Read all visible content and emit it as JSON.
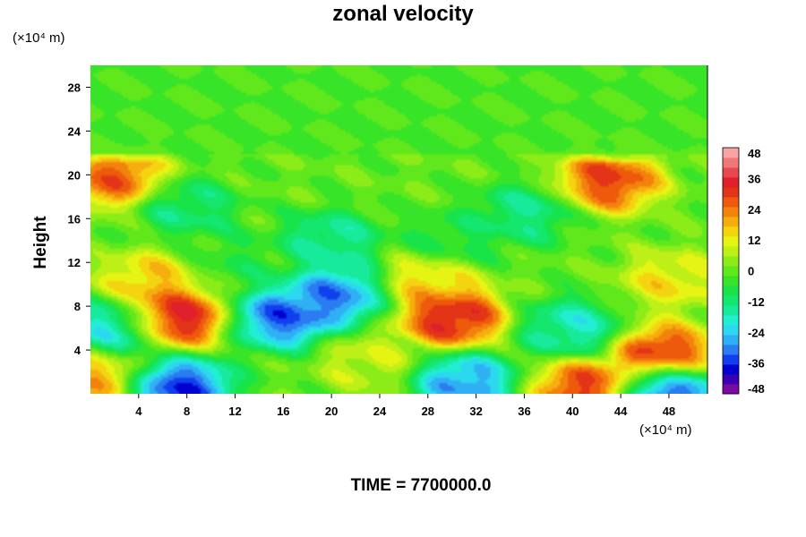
{
  "chart_data": {
    "type": "heatmap",
    "title": "zonal velocity",
    "ylabel": "Height",
    "y_unit_label": "(×10⁴ m)",
    "x_unit_label": "(×10⁴ m)",
    "xlim": [
      0,
      51.2
    ],
    "ylim": [
      0,
      30
    ],
    "x_ticks": [
      4,
      8,
      12,
      16,
      20,
      24,
      28,
      32,
      36,
      40,
      44,
      48
    ],
    "y_ticks": [
      4,
      8,
      12,
      16,
      20,
      24,
      28
    ],
    "colorbar": {
      "min": -48,
      "max": 48,
      "step": 4,
      "tick_labels": [
        -48,
        -36,
        -24,
        -12,
        0,
        12,
        24,
        36,
        48
      ],
      "colors": [
        "#7a0aa0",
        "#3a00b4",
        "#0000d0",
        "#1040ee",
        "#2a7cf0",
        "#30b0f4",
        "#2cd8f0",
        "#22eed0",
        "#18ea9c",
        "#14e66e",
        "#18e44a",
        "#38e428",
        "#60e81c",
        "#8cec18",
        "#bcf016",
        "#e6f414",
        "#f4d410",
        "#f6ae0e",
        "#f2820c",
        "#ee5a0c",
        "#e43418",
        "#e0202a",
        "#e8484e",
        "#f07878",
        "#f8a4a4"
      ]
    },
    "features": [
      {
        "x": 7,
        "y": 7,
        "value": 48
      },
      {
        "x": 30,
        "y": 7,
        "value": 46
      },
      {
        "x": 47.5,
        "y": 3.5,
        "value": 44
      },
      {
        "x": 2,
        "y": 19.8,
        "value": 36
      },
      {
        "x": 43,
        "y": 19.5,
        "value": 40
      },
      {
        "x": 16,
        "y": 7,
        "value": -44
      },
      {
        "x": 20.5,
        "y": 9,
        "value": -40
      },
      {
        "x": 7.5,
        "y": 0.5,
        "value": -48
      },
      {
        "x": 48,
        "y": 0.3,
        "value": -48
      },
      {
        "x": 31,
        "y": 1,
        "value": -38
      },
      {
        "x": 2,
        "y": 6,
        "value": -28
      },
      {
        "x": 40,
        "y": 6,
        "value": -24
      },
      {
        "x": 20,
        "y": 14,
        "value": -20
      },
      {
        "x": 8,
        "y": 17,
        "value": -16
      },
      {
        "x": 36,
        "y": 16.5,
        "value": -18
      },
      {
        "x": 5,
        "y": 10.3,
        "value": 22
      },
      {
        "x": 28,
        "y": 10.2,
        "value": 20
      },
      {
        "x": 48,
        "y": 10.3,
        "value": 18
      },
      {
        "x": 0,
        "y": 1.5,
        "value": 26
      },
      {
        "x": 41,
        "y": 0.5,
        "value": 40
      },
      {
        "x": 23,
        "y": 3,
        "value": 12
      },
      {
        "x": 12,
        "y": 12,
        "value": -8
      },
      {
        "x": 30,
        "y": 14,
        "value": -10
      }
    ]
  },
  "footer": {
    "time_label": "TIME = 7700000.0"
  }
}
